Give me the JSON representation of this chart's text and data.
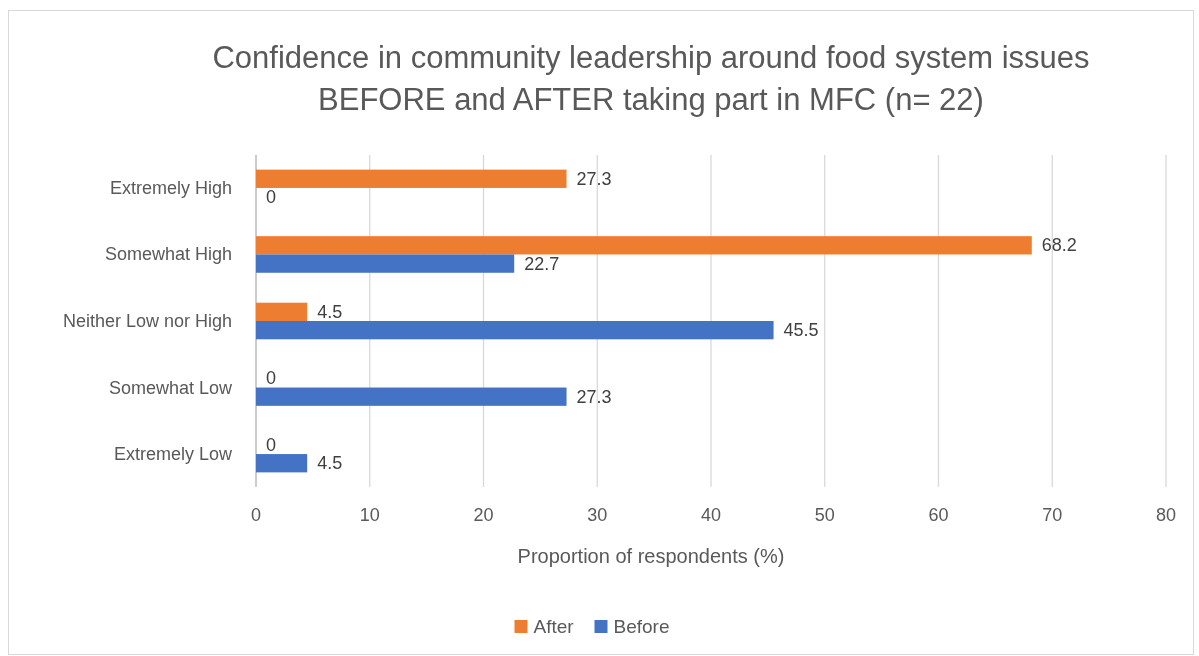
{
  "chart_data": {
    "type": "bar",
    "orientation": "horizontal",
    "title": "Confidence in community leadership around food system issues BEFORE and AFTER taking part in MFC (n= 22)",
    "xlabel": "Proportion of respondents (%)",
    "categories": [
      "Extremely High",
      "Somewhat High",
      "Neither Low nor High",
      "Somewhat Low",
      "Extremely Low"
    ],
    "series": [
      {
        "name": "After",
        "color": "#ed7d31",
        "values": [
          27.3,
          68.2,
          4.5,
          0,
          0
        ]
      },
      {
        "name": "Before",
        "color": "#4472c4",
        "values": [
          0,
          22.7,
          45.5,
          27.3,
          4.5
        ]
      }
    ],
    "xlim": [
      0,
      80
    ],
    "xticks": [
      0,
      10,
      20,
      30,
      40,
      50,
      60,
      70,
      80
    ],
    "grid": "x",
    "legend": "bottom",
    "data_labels": true
  }
}
